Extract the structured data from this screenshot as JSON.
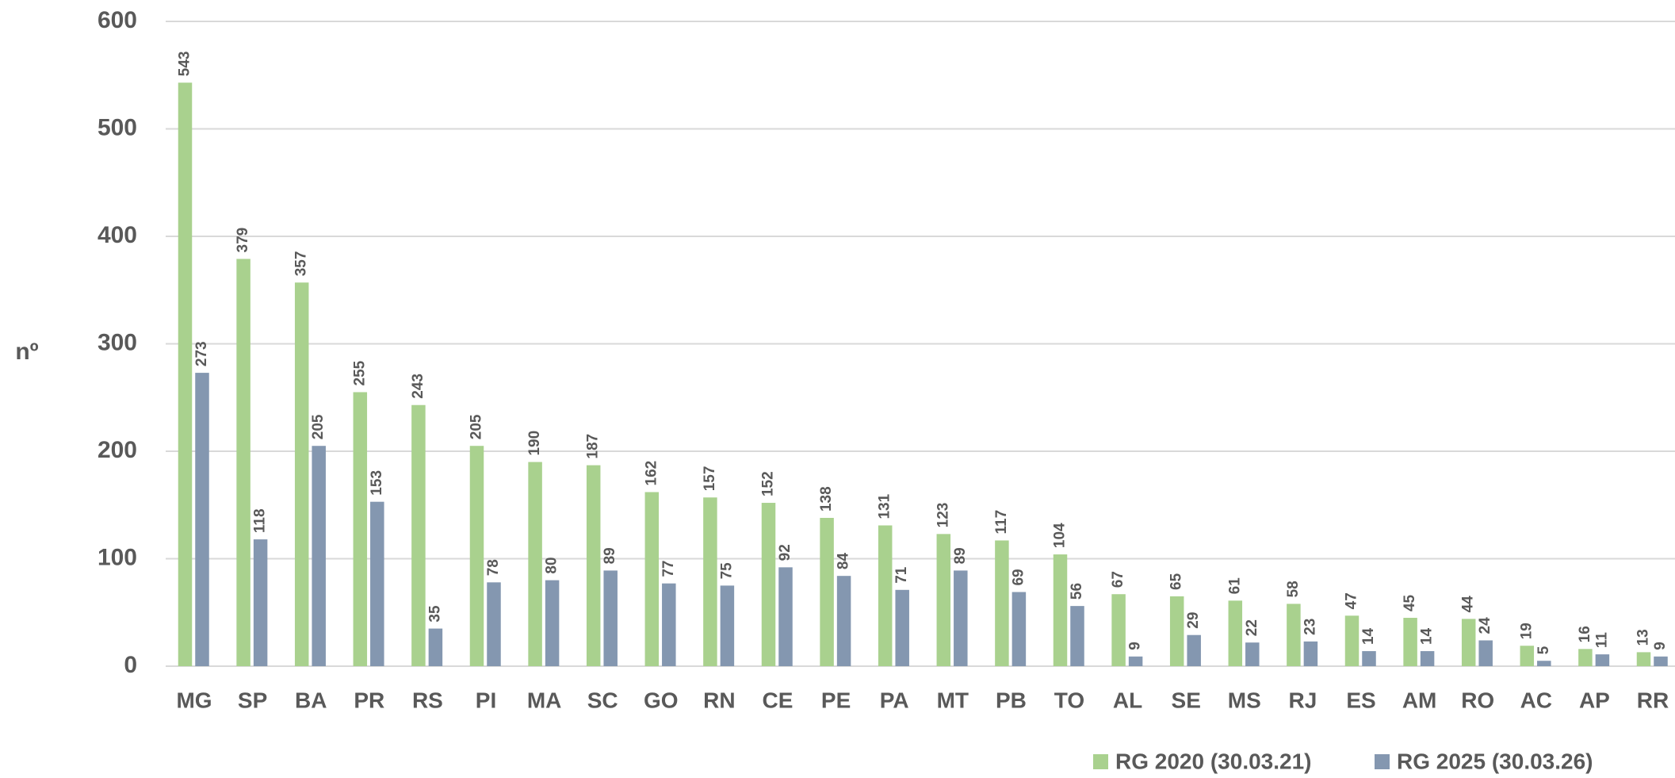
{
  "chart_data": {
    "type": "bar",
    "y_label": "nº",
    "categories": [
      "MG",
      "SP",
      "BA",
      "PR",
      "RS",
      "PI",
      "MA",
      "SC",
      "GO",
      "RN",
      "CE",
      "PE",
      "PA",
      "MT",
      "PB",
      "TO",
      "AL",
      "SE",
      "MS",
      "RJ",
      "ES",
      "AM",
      "RO",
      "AC",
      "AP",
      "RR"
    ],
    "series": [
      {
        "name": "RG 2020 (30.03.21)",
        "color": "#a9d18e",
        "values": [
          543,
          379,
          357,
          255,
          243,
          205,
          190,
          187,
          162,
          157,
          152,
          138,
          131,
          123,
          117,
          104,
          67,
          65,
          61,
          58,
          47,
          45,
          44,
          19,
          16,
          13
        ]
      },
      {
        "name": "RG 2025 (30.03.26)",
        "color": "#8497b0",
        "values": [
          273,
          118,
          205,
          153,
          35,
          78,
          80,
          89,
          77,
          75,
          92,
          84,
          71,
          89,
          69,
          56,
          9,
          29,
          22,
          23,
          14,
          14,
          24,
          5,
          11,
          9
        ]
      }
    ],
    "ylim": [
      0,
      600
    ],
    "yticks": [
      0,
      100,
      200,
      300,
      400,
      500,
      600
    ],
    "grid": true,
    "legend": "bottom-right"
  }
}
